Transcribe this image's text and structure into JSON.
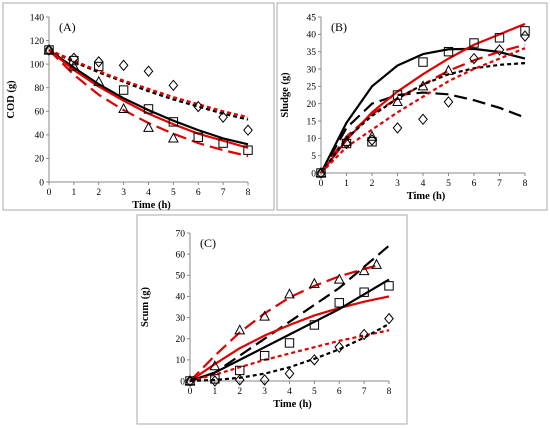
{
  "chart_data": [
    {
      "type": "line",
      "panel_label": "(A)",
      "xlabel": "Time (h)",
      "ylabel": "COD (g)",
      "xlim": [
        0,
        8
      ],
      "ylim": [
        0,
        140
      ],
      "xticks": [
        0,
        1,
        2,
        3,
        4,
        5,
        6,
        7,
        8
      ],
      "yticks": [
        0,
        20,
        40,
        60,
        80,
        100,
        120,
        140
      ],
      "markers": [
        {
          "shape": "diamond",
          "x": [
            0,
            1,
            2,
            3,
            4,
            5,
            6,
            7,
            8
          ],
          "y": [
            112,
            105,
            102,
            99,
            94,
            82,
            64,
            55,
            44
          ]
        },
        {
          "shape": "square",
          "x": [
            0,
            1,
            2,
            3,
            4,
            5,
            6,
            7,
            8
          ],
          "y": [
            112,
            103,
            98,
            78,
            62,
            51,
            38,
            33,
            27
          ]
        },
        {
          "shape": "triangle",
          "x": [
            0,
            1,
            2,
            3,
            4,
            5
          ],
          "y": [
            112,
            98,
            85,
            62,
            46,
            37
          ]
        }
      ],
      "curves": [
        {
          "color": "#000000",
          "dash": "dotted",
          "x": [
            0,
            1,
            2,
            3,
            4,
            5,
            6,
            7,
            8
          ],
          "y": [
            112,
            102,
            93,
            85,
            77,
            70,
            64,
            58,
            53
          ]
        },
        {
          "color": "#e00000",
          "dash": "dotted",
          "x": [
            0,
            1,
            2,
            3,
            4,
            5,
            6,
            7,
            8
          ],
          "y": [
            112,
            103,
            94,
            86,
            79,
            72,
            66,
            60,
            55
          ]
        },
        {
          "color": "#000000",
          "dash": "solid",
          "x": [
            0,
            1,
            2,
            3,
            4,
            5,
            6,
            7,
            8
          ],
          "y": [
            112,
            97,
            83,
            71,
            61,
            52,
            44,
            37,
            32
          ]
        },
        {
          "color": "#e00000",
          "dash": "solid",
          "x": [
            0,
            1,
            2,
            3,
            4,
            5,
            6,
            7,
            8
          ],
          "y": [
            112,
            95,
            81,
            69,
            58,
            49,
            41,
            35,
            29
          ]
        },
        {
          "color": "#e00000",
          "dash": "long-dash",
          "x": [
            0,
            1,
            2,
            3,
            4,
            5,
            6,
            7,
            8
          ],
          "y": [
            112,
            91,
            74,
            61,
            50,
            41,
            33,
            27,
            22
          ]
        }
      ]
    },
    {
      "type": "line",
      "panel_label": "(B)",
      "xlabel": "Time (h)",
      "ylabel": "Sludge (g)",
      "xlim": [
        0,
        8
      ],
      "ylim": [
        0,
        45
      ],
      "xticks": [
        0,
        1,
        2,
        3,
        4,
        5,
        6,
        7,
        8
      ],
      "yticks": [
        0,
        5,
        10,
        15,
        20,
        25,
        30,
        35,
        40,
        45
      ],
      "markers": [
        {
          "shape": "diamond",
          "x": [
            0,
            1,
            2,
            3,
            4,
            5,
            6,
            7,
            8
          ],
          "y": [
            0,
            8.5,
            9.5,
            13,
            15.5,
            20.5,
            33,
            35.5,
            39.5
          ]
        },
        {
          "shape": "square",
          "x": [
            0,
            1,
            2,
            3,
            4,
            5,
            6,
            7,
            8
          ],
          "y": [
            0,
            8.5,
            9,
            22.5,
            32,
            35,
            37.5,
            39,
            41
          ]
        },
        {
          "shape": "triangle",
          "x": [
            0,
            1,
            2,
            3,
            4,
            5
          ],
          "y": [
            0,
            9,
            10.5,
            20.5,
            25,
            29.5
          ]
        }
      ],
      "curves": [
        {
          "color": "#000000",
          "dash": "solid",
          "x": [
            0,
            1,
            2,
            3,
            4,
            5,
            6,
            7,
            8
          ],
          "y": [
            0,
            14.5,
            25,
            31,
            34.3,
            35.7,
            35.8,
            34.9,
            33
          ]
        },
        {
          "color": "#000000",
          "dash": "long-dash",
          "x": [
            0,
            1,
            2,
            3,
            4,
            5,
            6,
            7,
            8
          ],
          "y": [
            0,
            13,
            20,
            22.5,
            23.2,
            22.7,
            21,
            18.8,
            16
          ]
        },
        {
          "color": "#e00000",
          "dash": "solid",
          "x": [
            0,
            1,
            2,
            3,
            4,
            5,
            6,
            7,
            8
          ],
          "y": [
            0,
            9.5,
            17.5,
            23.5,
            28.5,
            33,
            37,
            40,
            43
          ]
        },
        {
          "color": "#e00000",
          "dash": "long-dash",
          "x": [
            0,
            1,
            2,
            3,
            4,
            5,
            6,
            7,
            8
          ],
          "y": [
            0,
            10.5,
            17,
            21.5,
            25.5,
            29.5,
            32.5,
            35,
            37
          ]
        },
        {
          "color": "#000000",
          "dash": "dotted",
          "x": [
            0,
            1,
            2,
            3,
            4,
            5,
            6,
            7,
            8
          ],
          "y": [
            0,
            10,
            16.5,
            21.5,
            25.5,
            28.5,
            30.2,
            31.2,
            31.7
          ]
        },
        {
          "color": "#e00000",
          "dash": "dotted",
          "x": [
            0,
            1,
            2,
            3,
            4,
            5,
            6,
            7,
            8
          ],
          "y": [
            0,
            7.5,
            12.5,
            17.5,
            22,
            26.5,
            30,
            33,
            36
          ]
        }
      ]
    },
    {
      "type": "line",
      "panel_label": "(C)",
      "xlabel": "Time (h)",
      "ylabel": "Scum (g)",
      "xlim": [
        0,
        8
      ],
      "ylim": [
        0,
        70
      ],
      "xticks": [
        0,
        1,
        2,
        3,
        4,
        5,
        6,
        7,
        8
      ],
      "yticks": [
        0,
        10,
        20,
        30,
        40,
        50,
        60,
        70
      ],
      "markers": [
        {
          "shape": "diamond",
          "x": [
            0,
            1,
            2,
            3,
            4,
            5,
            6,
            7,
            8
          ],
          "y": [
            0,
            0,
            0.5,
            0.5,
            3.5,
            10,
            16,
            22,
            29.5
          ]
        },
        {
          "shape": "square",
          "x": [
            0,
            1,
            2,
            3,
            4,
            5,
            6,
            7,
            8
          ],
          "y": [
            0,
            1,
            5,
            12,
            18,
            26.5,
            37,
            42,
            45
          ]
        },
        {
          "shape": "triangle",
          "x": [
            0,
            1,
            2,
            3,
            4,
            5,
            6,
            7,
            7.5
          ],
          "y": [
            0,
            7,
            24,
            30.5,
            41,
            46,
            48,
            52,
            55
          ]
        }
      ],
      "curves": [
        {
          "color": "#e00000",
          "dash": "long-dash",
          "x": [
            0,
            1,
            2,
            3,
            4,
            5,
            6,
            7,
            7.5
          ],
          "y": [
            0,
            12,
            23,
            32,
            39.5,
            45,
            49.5,
            53,
            54.5
          ]
        },
        {
          "color": "#000000",
          "dash": "long-dash",
          "x": [
            0,
            1,
            2,
            3,
            4,
            5,
            6,
            7,
            8
          ],
          "y": [
            0,
            4,
            12,
            20,
            28,
            36,
            44,
            54,
            64
          ]
        },
        {
          "color": "#e00000",
          "dash": "solid",
          "x": [
            0,
            1,
            2,
            3,
            4,
            5,
            6,
            7,
            8
          ],
          "y": [
            0,
            8,
            15.5,
            21.5,
            26.5,
            31,
            34.5,
            37.5,
            40
          ]
        },
        {
          "color": "#000000",
          "dash": "solid",
          "x": [
            0,
            1,
            2,
            3,
            4,
            5,
            6,
            7,
            8
          ],
          "y": [
            0,
            4,
            10,
            16,
            22,
            28,
            34,
            41,
            48
          ]
        },
        {
          "color": "#e00000",
          "dash": "dotted",
          "x": [
            0,
            1,
            2,
            3,
            4,
            5,
            6,
            7,
            8
          ],
          "y": [
            0,
            3,
            6.5,
            10,
            13,
            16,
            19,
            21.5,
            24
          ]
        },
        {
          "color": "#000000",
          "dash": "dotted",
          "x": [
            0,
            1,
            2,
            3,
            4,
            5,
            6,
            7,
            8
          ],
          "y": [
            0,
            0.5,
            1.5,
            3.5,
            6.5,
            10.5,
            15,
            20.5,
            27
          ]
        }
      ]
    }
  ]
}
